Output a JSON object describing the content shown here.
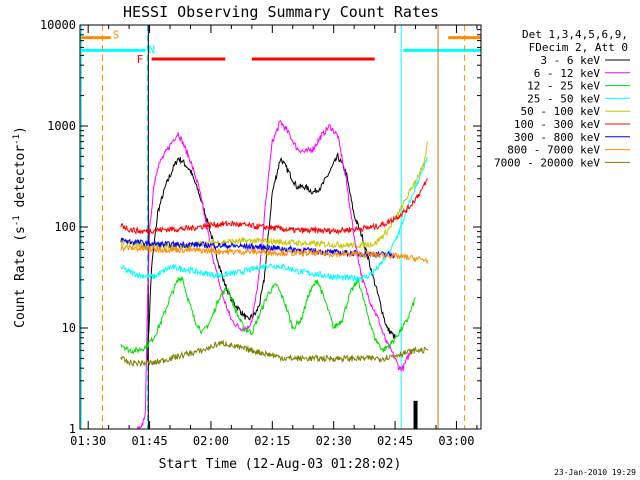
{
  "chart_data": {
    "type": "line",
    "title": "HESSI Observing Summary Count Rates",
    "xlabel": "Start Time (12-Aug-03 01:28:02)",
    "ylabel_main": "Count Rate (s",
    "ylabel_sup1": "-1",
    "ylabel_mid": " detector",
    "ylabel_sup2": "-1",
    "ylabel_end": ")",
    "yscale": "log",
    "xlim": [
      88,
      186
    ],
    "ylim": [
      1,
      10000
    ],
    "x_ticks": [
      {
        "value": 90,
        "label": "01:30"
      },
      {
        "value": 105,
        "label": "01:45"
      },
      {
        "value": 120,
        "label": "02:00"
      },
      {
        "value": 135,
        "label": "02:15"
      },
      {
        "value": 150,
        "label": "02:30"
      },
      {
        "value": 165,
        "label": "02:45"
      },
      {
        "value": 180,
        "label": "03:00"
      }
    ],
    "y_ticks": [
      {
        "value": 1,
        "label": "1"
      },
      {
        "value": 10,
        "label": "10"
      },
      {
        "value": 100,
        "label": "100"
      },
      {
        "value": 1000,
        "label": "1000"
      },
      {
        "value": 10000,
        "label": "10000"
      }
    ],
    "legend": {
      "header1": "Det 1,3,4,5,6,9,",
      "header2": "FDecim 2, Att 0",
      "entries": [
        {
          "label": "3 - 6 keV",
          "color": "#000000"
        },
        {
          "label": "6 - 12 keV",
          "color": "#ff00ff"
        },
        {
          "label": "12 - 25 keV",
          "color": "#00dd00"
        },
        {
          "label": "25 - 50 keV",
          "color": "#00ffff"
        },
        {
          "label": "50 - 100 keV",
          "color": "#c8c800"
        },
        {
          "label": "100 - 300 keV",
          "color": "#ff0000"
        },
        {
          "label": "300 - 800 keV",
          "color": "#0000ff"
        },
        {
          "label": "800 - 7000 keV",
          "color": "#ff8c00"
        },
        {
          "label": "7000 - 20000 keV",
          "color": "#808000"
        }
      ]
    },
    "series": [
      {
        "name": "3 - 6 keV",
        "color": "#000000",
        "x": [
          104.5,
          105.5,
          107,
          109,
          111,
          112,
          113,
          115,
          117,
          119,
          121,
          123,
          125,
          127,
          129,
          130,
          131,
          132,
          133,
          134,
          135,
          137,
          139,
          141,
          143,
          145,
          147,
          149,
          151,
          153,
          155,
          157,
          159,
          161,
          162,
          163,
          164,
          165
        ],
        "y": [
          5,
          40,
          140,
          260,
          400,
          480,
          450,
          360,
          220,
          120,
          60,
          30,
          19,
          15,
          12,
          13,
          14,
          18,
          30,
          80,
          220,
          480,
          350,
          250,
          250,
          220,
          250,
          350,
          500,
          350,
          130,
          80,
          40,
          20,
          14,
          10,
          9,
          8
        ]
      },
      {
        "name": "6 - 12 keV",
        "color": "#ff00ff",
        "x": [
          102,
          103,
          104,
          104.5,
          105,
          106,
          107,
          109,
          111,
          112,
          113,
          115,
          117,
          119,
          121,
          123,
          125,
          127,
          129,
          130,
          131,
          132,
          133,
          134,
          135,
          137,
          139,
          141,
          143,
          145,
          147,
          149,
          151,
          153,
          155,
          157,
          159,
          161,
          162,
          163,
          164,
          165,
          166,
          167,
          168,
          169
        ],
        "y": [
          1,
          1,
          1.5,
          20,
          90,
          250,
          400,
          550,
          750,
          850,
          700,
          450,
          250,
          100,
          40,
          20,
          12,
          10,
          10,
          12,
          20,
          40,
          120,
          300,
          700,
          1100,
          850,
          600,
          550,
          600,
          800,
          1000,
          800,
          300,
          80,
          30,
          18,
          12,
          9,
          7,
          6,
          5,
          4,
          4,
          5,
          6
        ]
      },
      {
        "name": "12 - 25 keV",
        "color": "#00dd00",
        "x": [
          98,
          100,
          102,
          104,
          106,
          108,
          110,
          112,
          113,
          114,
          116,
          118,
          120,
          122,
          124,
          126,
          128,
          130,
          132,
          134,
          136,
          138,
          140,
          142,
          144,
          146,
          148,
          150,
          152,
          154,
          156,
          158,
          160,
          162,
          164,
          166,
          168,
          170
        ],
        "y": [
          7,
          6,
          6,
          6.5,
          8,
          12,
          20,
          30,
          32,
          22,
          12,
          9,
          12,
          20,
          25,
          15,
          10,
          9,
          14,
          22,
          27,
          18,
          10,
          12,
          22,
          30,
          18,
          10,
          12,
          22,
          30,
          15,
          8,
          6,
          7,
          9,
          12,
          20
        ]
      },
      {
        "name": "25 - 50 keV",
        "color": "#00ffff",
        "x": [
          98,
          100,
          103,
          106,
          110,
          114,
          118,
          122,
          126,
          130,
          134,
          138,
          142,
          146,
          150,
          154,
          158,
          161,
          164,
          166,
          168,
          170,
          172,
          173
        ],
        "y": [
          40,
          36,
          33,
          32,
          40,
          38,
          35,
          33,
          35,
          38,
          42,
          40,
          36,
          34,
          32,
          31,
          32,
          40,
          60,
          90,
          150,
          250,
          380,
          480
        ]
      },
      {
        "name": "50 - 100 keV",
        "color": "#c8c800",
        "x": [
          98,
          100,
          105,
          110,
          115,
          120,
          125,
          130,
          135,
          140,
          145,
          150,
          155,
          160,
          163,
          166,
          168,
          170,
          172,
          173
        ],
        "y": [
          70,
          68,
          65,
          64,
          66,
          70,
          72,
          73,
          72,
          70,
          68,
          67,
          66,
          68,
          90,
          140,
          200,
          290,
          400,
          700
        ]
      },
      {
        "name": "100 - 300 keV",
        "color": "#ff0000",
        "x": [
          98,
          100,
          103,
          106,
          110,
          115,
          120,
          125,
          130,
          135,
          140,
          145,
          150,
          155,
          160,
          163,
          166,
          168,
          170,
          172,
          173
        ],
        "y": [
          105,
          95,
          90,
          93,
          95,
          97,
          105,
          108,
          102,
          98,
          93,
          92,
          92,
          95,
          100,
          110,
          130,
          150,
          190,
          250,
          300
        ]
      },
      {
        "name": "300 - 800 keV",
        "color": "#0000ff",
        "x": [
          98,
          100,
          103,
          106,
          110,
          115,
          120,
          125,
          130,
          135,
          140,
          145,
          150,
          155,
          160,
          164,
          165
        ],
        "y": [
          75,
          72,
          70,
          68,
          67,
          67,
          66,
          65,
          64,
          62,
          60,
          58,
          56,
          55,
          54,
          53,
          52
        ]
      },
      {
        "name": "800 - 7000 keV",
        "color": "#ff8c00",
        "x": [
          98,
          100,
          103,
          106,
          110,
          115,
          120,
          125,
          130,
          135,
          140,
          145,
          150,
          155,
          160,
          164,
          168,
          171,
          173
        ],
        "y": [
          62,
          62,
          61,
          60,
          60,
          59,
          58,
          57,
          57,
          56,
          55,
          55,
          54,
          54,
          53,
          52,
          50,
          48,
          47
        ]
      },
      {
        "name": "7000 - 20000 keV",
        "color": "#808000",
        "x": [
          98,
          100,
          103,
          106,
          110,
          114,
          118,
          120,
          122,
          124,
          126,
          130,
          134,
          138,
          142,
          146,
          150,
          154,
          158,
          162,
          166,
          170,
          173
        ],
        "y": [
          5,
          4.5,
          4.5,
          4.5,
          5,
          5.5,
          6,
          6.5,
          7,
          7,
          6.5,
          6,
          5.5,
          5,
          5,
          5,
          5,
          5,
          5,
          5,
          5.5,
          6,
          6
        ]
      }
    ],
    "mode_bars": [
      {
        "label": "S",
        "color": "#ff8c00",
        "y": 7500,
        "segments": [
          [
            88,
            95.5
          ],
          [
            178,
            186
          ]
        ]
      },
      {
        "label": "N",
        "color": "#00ffff",
        "y": 5600,
        "segments": [
          [
            88,
            104
          ],
          [
            167,
            186
          ]
        ]
      },
      {
        "label": "F",
        "color": "#ff0000",
        "y": 4600,
        "segments": [
          [
            105.5,
            123.5
          ],
          [
            130,
            160
          ]
        ]
      }
    ],
    "vlines": [
      {
        "x": 88.3,
        "color": "#00ffff",
        "style": "solid"
      },
      {
        "x": 93.5,
        "color": "#ff8c00",
        "style": "dashed"
      },
      {
        "x": 104.5,
        "color": "#00ffff",
        "style": "dashed"
      },
      {
        "x": 104.7,
        "color": "#000000",
        "style": "solid"
      },
      {
        "x": 166.5,
        "color": "#00ffff",
        "style": "solid"
      },
      {
        "x": 175.5,
        "color": "#c87800",
        "style": "solid"
      },
      {
        "x": 182,
        "color": "#ff8c00",
        "style": "dashed"
      }
    ],
    "black_blocks": [
      {
        "x": 170,
        "y_top": 1.9
      }
    ]
  },
  "footer_date": "23-Jan-2010 19:29"
}
